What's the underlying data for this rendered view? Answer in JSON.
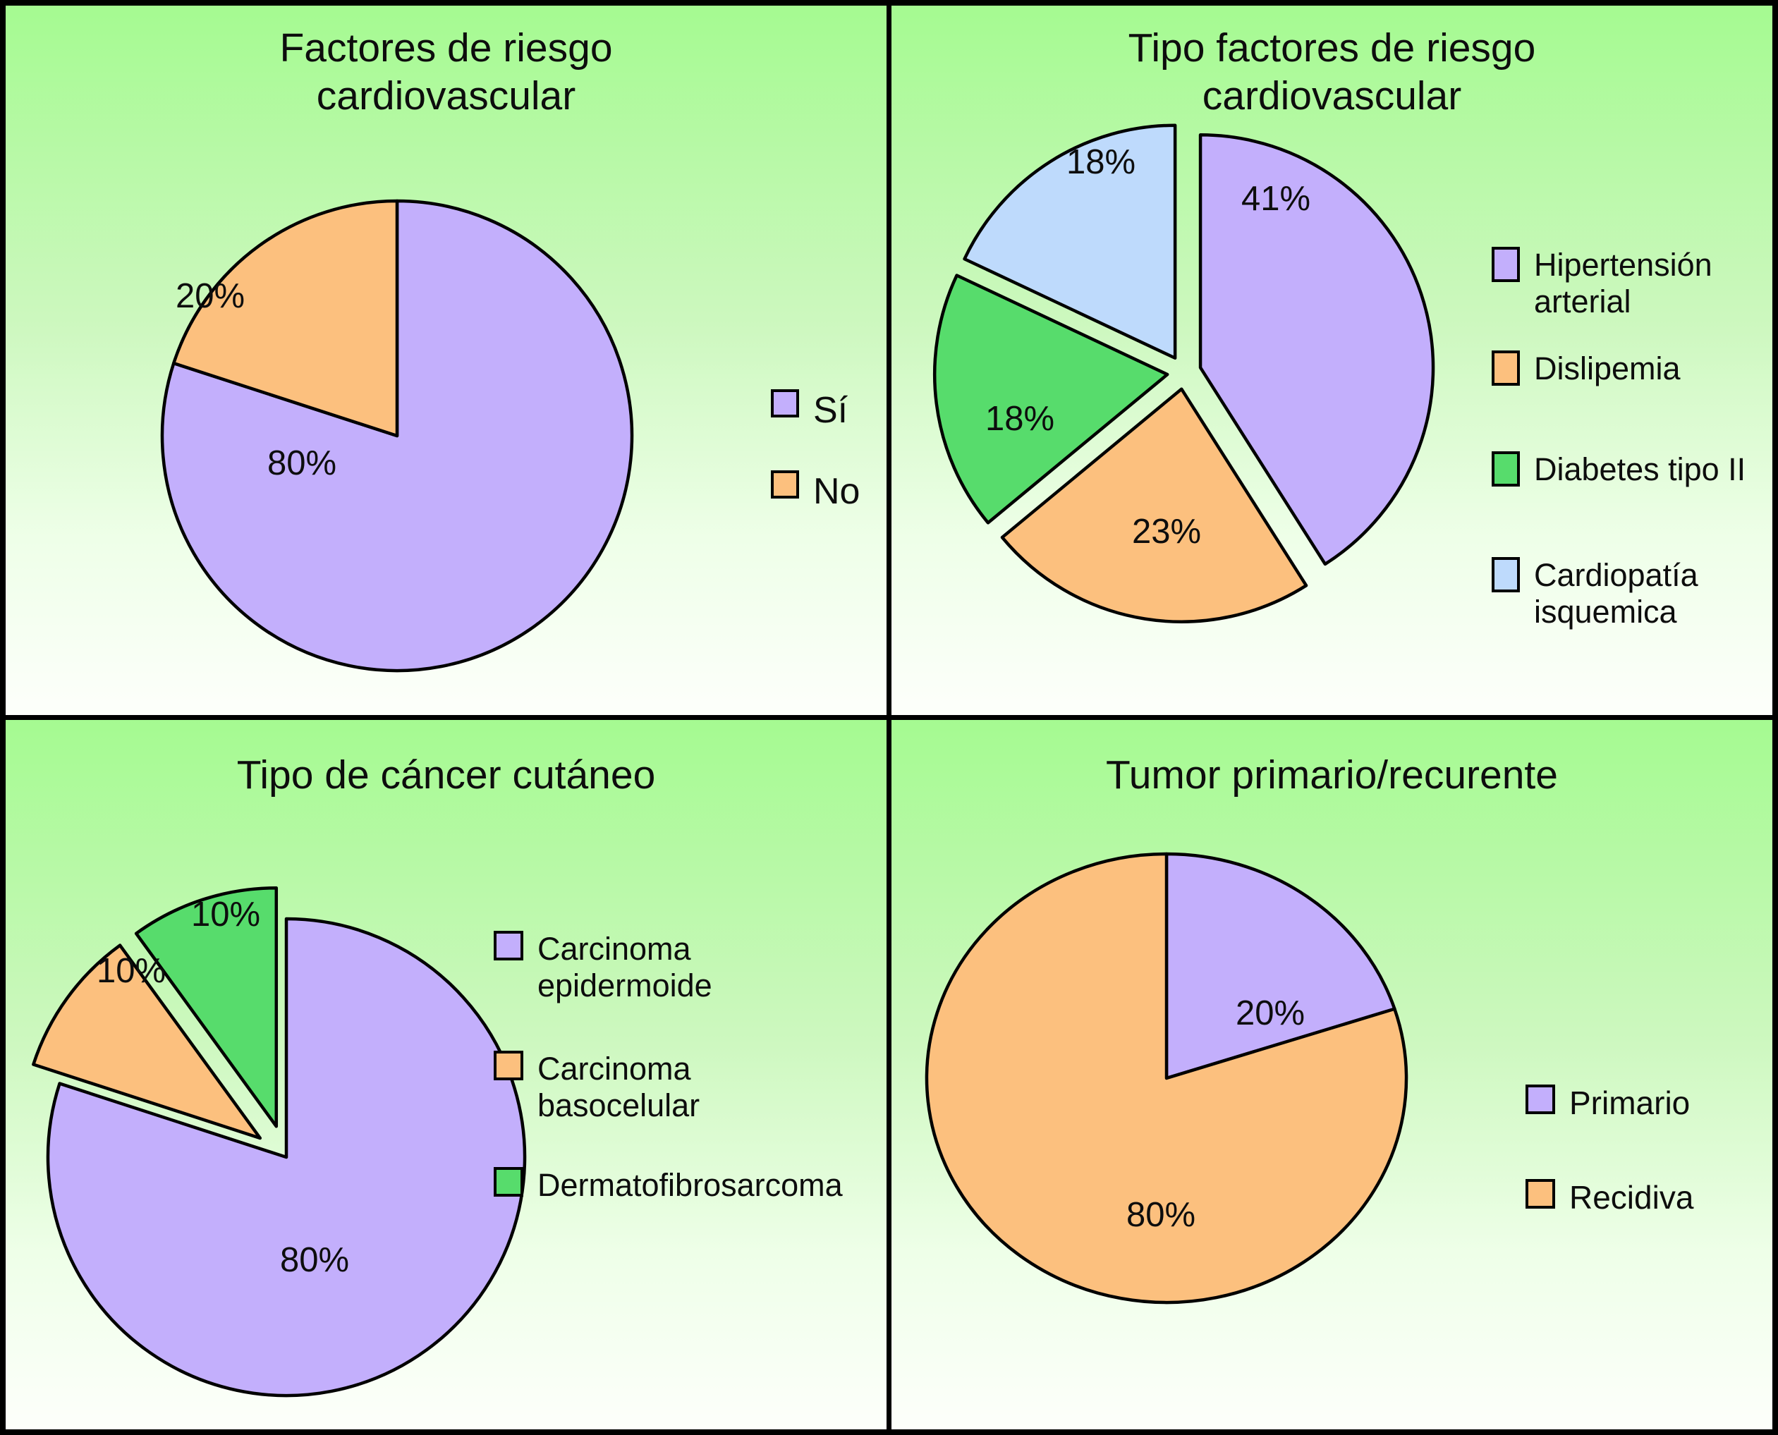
{
  "figure": {
    "frame_color": "#000000",
    "panel_background_top": "#a5fa91",
    "panel_background_bottom": "#fdfffb"
  },
  "chart_data": [
    {
      "type": "pie",
      "title": "Factores de riesgo cardiovascular",
      "title_lines": [
        "Factores de riesgo",
        "cardiovascular"
      ],
      "legend_position": "right",
      "grid": false,
      "slices": [
        {
          "label": "Sí",
          "legend_lines": [
            "Sí"
          ],
          "value": 80,
          "pct_label": "80%",
          "color": "#c3affc",
          "exploded": false
        },
        {
          "label": "No",
          "legend_lines": [
            "No"
          ],
          "value": 20,
          "pct_label": "20%",
          "color": "#fcc07e",
          "exploded": false
        }
      ]
    },
    {
      "type": "pie",
      "title": "Tipo factores de riesgo cardiovascular",
      "title_lines": [
        "Tipo factores de riesgo",
        "cardiovascular"
      ],
      "legend_position": "right",
      "grid": false,
      "slices": [
        {
          "label": "Hipertensión arterial",
          "legend_lines": [
            "Hipertensión",
            "arterial"
          ],
          "value": 41,
          "pct_label": "41%",
          "color": "#c3affc",
          "exploded": true
        },
        {
          "label": "Dislipemia",
          "legend_lines": [
            "Dislipemia"
          ],
          "value": 23,
          "pct_label": "23%",
          "color": "#fcc07e",
          "exploded": true
        },
        {
          "label": "Diabetes tipo II",
          "legend_lines": [
            "Diabetes tipo II"
          ],
          "value": 18,
          "pct_label": "18%",
          "color": "#57dc6c",
          "exploded": true
        },
        {
          "label": "Cardiopatía isquemica",
          "legend_lines": [
            "Cardiopatía",
            "isquemica"
          ],
          "value": 18,
          "pct_label": "18%",
          "color": "#bedafc",
          "exploded": true
        }
      ]
    },
    {
      "type": "pie",
      "title": "Tipo de cáncer cutáneo",
      "title_lines": [
        "Tipo de cáncer cutáneo"
      ],
      "legend_position": "right",
      "grid": false,
      "slices": [
        {
          "label": "Carcinoma epidermoide",
          "legend_lines": [
            "Carcinoma",
            "epidermoide"
          ],
          "value": 80,
          "pct_label": "80%",
          "color": "#c3affc",
          "exploded": false
        },
        {
          "label": "Carcinoma basocelular",
          "legend_lines": [
            "Carcinoma",
            "basocelular"
          ],
          "value": 10,
          "pct_label": "10%",
          "color": "#fcc07e",
          "exploded": true
        },
        {
          "label": "Dermatofibrosarcoma",
          "legend_lines": [
            "Dermatofibrosarcoma"
          ],
          "value": 10,
          "pct_label": "10%",
          "color": "#57dc6c",
          "exploded": true
        }
      ]
    },
    {
      "type": "pie",
      "title": "Tumor primario/recurente",
      "title_lines": [
        "Tumor primario/recurente"
      ],
      "legend_position": "right",
      "grid": false,
      "slices": [
        {
          "label": "Primario",
          "legend_lines": [
            "Primario"
          ],
          "value": 20,
          "pct_label": "20%",
          "color": "#c3affc",
          "exploded": false
        },
        {
          "label": "Recidiva",
          "legend_lines": [
            "Recidiva"
          ],
          "value": 80,
          "pct_label": "80%",
          "color": "#fcc07e",
          "exploded": false
        }
      ]
    }
  ]
}
